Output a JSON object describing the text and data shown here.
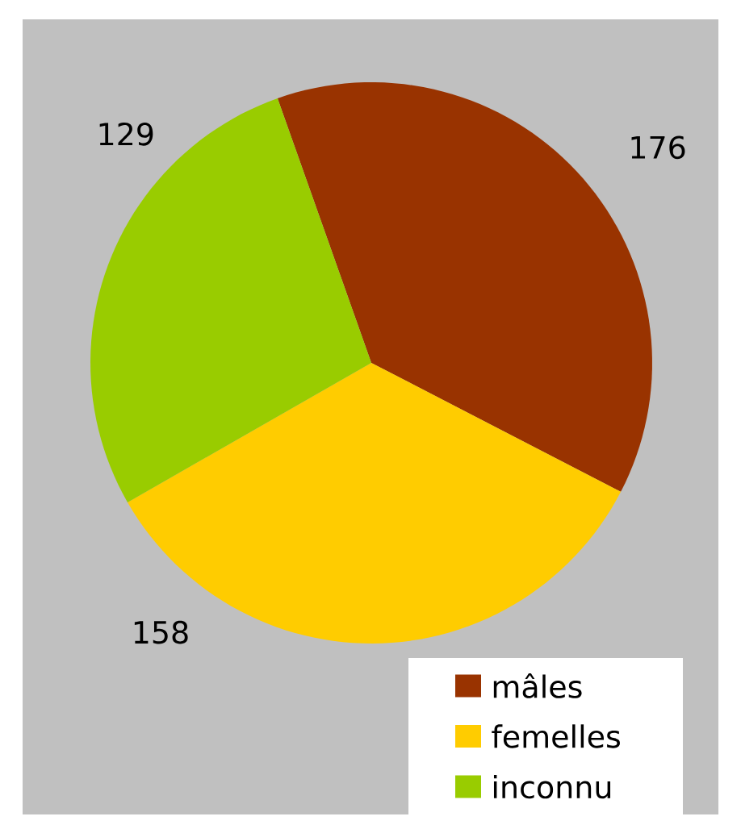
{
  "chart_data": {
    "type": "pie",
    "categories": [
      "mâles",
      "femelles",
      "inconnu"
    ],
    "values": [
      176,
      158,
      129
    ],
    "colors": [
      "#993300",
      "#ffcc00",
      "#99cc00"
    ],
    "data_labels": true,
    "legend": "bottom right"
  }
}
